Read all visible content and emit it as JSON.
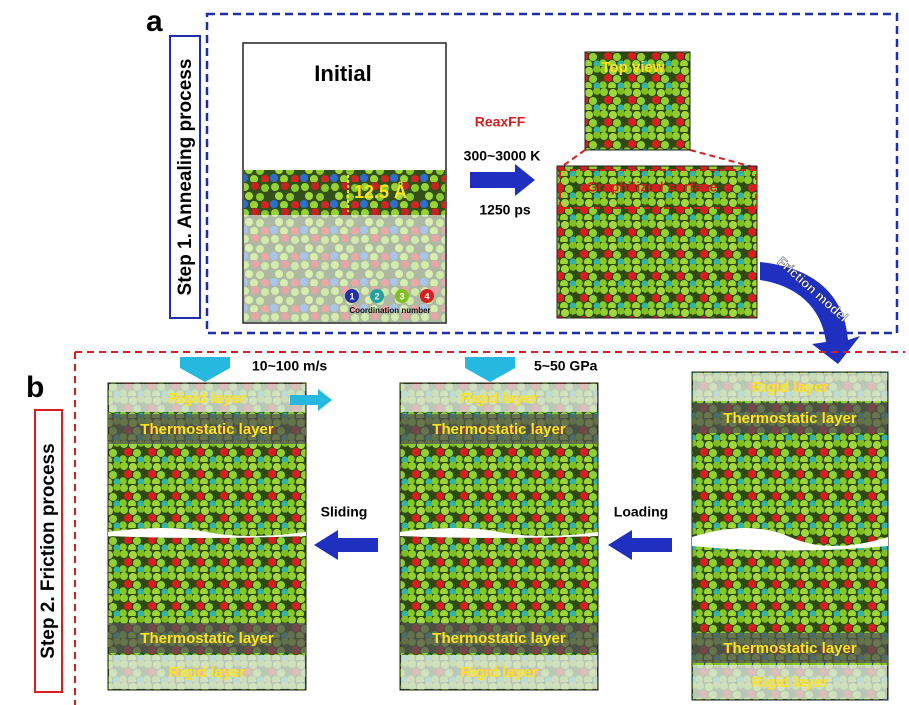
{
  "panel_a": {
    "label": "a",
    "step": "Step 1. Annealing process",
    "initial_title": "Initial",
    "thickness": "12.5 Å",
    "legend": {
      "items": [
        "1",
        "2",
        "3",
        "4"
      ],
      "title": "Coordination number"
    },
    "method": "ReaxFF",
    "temperature": "300~3000 K",
    "time": "1250 ps",
    "top_view": "Top view",
    "surface": "Graphitized surface",
    "next": "Friction model"
  },
  "panel_b": {
    "label": "b",
    "step": "Step 2. Friction process",
    "boxes": [
      {
        "condition": "10~100 m/s",
        "top_rigid": "Rigid layer",
        "top_thermo": "Thermostatic layer",
        "bottom_thermo": "Thermostatic layer",
        "bottom_rigid": "Rigid layer"
      },
      {
        "condition": "5~50 GPa",
        "top_rigid": "Rigid layer",
        "top_thermo": "Thermostatic layer",
        "bottom_thermo": "Thermostatic layer",
        "bottom_rigid": "Rigid layer"
      },
      {
        "top_rigid": "Rigid layer",
        "top_thermo": "Thermostatic layer",
        "bottom_thermo": "Thermostatic layer",
        "bottom_rigid": "Rigid layer"
      }
    ],
    "sliding": "Sliding",
    "loading": "Loading"
  }
}
